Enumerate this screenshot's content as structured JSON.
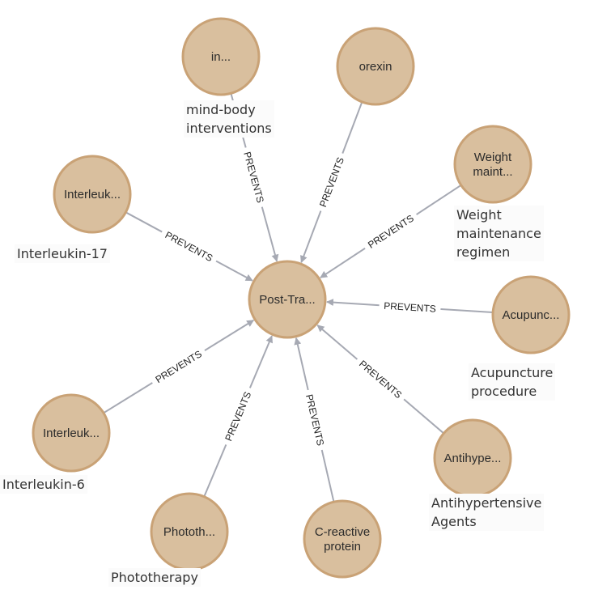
{
  "center": {
    "label": "Post-Tra..."
  },
  "relation": "PREVENTS",
  "nodes": [
    {
      "id": "in",
      "label": "in...",
      "caption": "mind-body\ninterventions"
    },
    {
      "id": "orexin",
      "label": "orexin",
      "caption": ""
    },
    {
      "id": "weight",
      "label": [
        "Weight",
        "maint..."
      ],
      "caption": "Weight\nmaintenance\nregimen"
    },
    {
      "id": "acup",
      "label": "Acupunc...",
      "caption": "Acupuncture\nprocedure"
    },
    {
      "id": "antihyp",
      "label": "Antihype...",
      "caption": "Antihypertensive\nAgents"
    },
    {
      "id": "crp",
      "label": [
        "C-reactive",
        "protein"
      ],
      "caption": ""
    },
    {
      "id": "photo",
      "label": "Phototh...",
      "caption": "Phototherapy"
    },
    {
      "id": "il6",
      "label": "Interleuk...",
      "caption": "Interleukin-6"
    },
    {
      "id": "il17",
      "label": "Interleuk...",
      "caption": "Interleukin-17"
    }
  ],
  "colors": {
    "node_fill": "#d9bf9e",
    "node_stroke": "#c9a276",
    "edge": "#a6a9b3"
  }
}
